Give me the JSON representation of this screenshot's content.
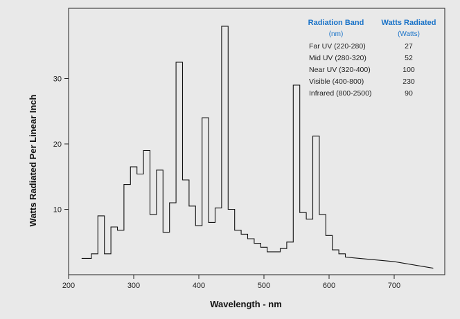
{
  "chart_data": {
    "type": "line",
    "title": "",
    "xlabel": "Wavelength - nm",
    "ylabel": "Watts Radiated Per Linear Inch",
    "xlim": [
      200,
      760
    ],
    "ylim": [
      0,
      40
    ],
    "x_ticks": [
      "200",
      "300",
      "400",
      "500",
      "600",
      "700"
    ],
    "y_ticks": [
      "10",
      "20",
      "30"
    ],
    "grid": false,
    "step_series": {
      "name": "",
      "start_x": 220,
      "steps": [
        {
          "x_end": 235,
          "y": 2.5
        },
        {
          "x_end": 245,
          "y": 3.2
        },
        {
          "x_end": 255,
          "y": 9.0
        },
        {
          "x_end": 265,
          "y": 3.2
        },
        {
          "x_end": 275,
          "y": 7.3
        },
        {
          "x_end": 285,
          "y": 6.8
        },
        {
          "x_end": 295,
          "y": 13.8
        },
        {
          "x_end": 305,
          "y": 16.5
        },
        {
          "x_end": 315,
          "y": 15.4
        },
        {
          "x_end": 325,
          "y": 19.0
        },
        {
          "x_end": 335,
          "y": 9.2
        },
        {
          "x_end": 345,
          "y": 16.0
        },
        {
          "x_end": 355,
          "y": 6.5
        },
        {
          "x_end": 365,
          "y": 11.0
        },
        {
          "x_end": 375,
          "y": 32.5
        },
        {
          "x_end": 385,
          "y": 14.5
        },
        {
          "x_end": 395,
          "y": 10.5
        },
        {
          "x_end": 405,
          "y": 7.5
        },
        {
          "x_end": 415,
          "y": 24.0
        },
        {
          "x_end": 425,
          "y": 8.0
        },
        {
          "x_end": 435,
          "y": 10.2
        },
        {
          "x_end": 445,
          "y": 38.0
        },
        {
          "x_end": 455,
          "y": 10.0
        },
        {
          "x_end": 465,
          "y": 6.8
        },
        {
          "x_end": 475,
          "y": 6.2
        },
        {
          "x_end": 485,
          "y": 5.5
        },
        {
          "x_end": 495,
          "y": 4.8
        },
        {
          "x_end": 505,
          "y": 4.2
        },
        {
          "x_end": 515,
          "y": 3.5
        },
        {
          "x_end": 525,
          "y": 3.5
        },
        {
          "x_end": 535,
          "y": 4.0
        },
        {
          "x_end": 545,
          "y": 5.0
        },
        {
          "x_end": 555,
          "y": 29.0
        },
        {
          "x_end": 565,
          "y": 9.5
        },
        {
          "x_end": 575,
          "y": 8.5
        },
        {
          "x_end": 585,
          "y": 21.2
        },
        {
          "x_end": 595,
          "y": 9.2
        },
        {
          "x_end": 605,
          "y": 6.0
        },
        {
          "x_end": 615,
          "y": 3.8
        },
        {
          "x_end": 625,
          "y": 3.2
        }
      ],
      "tail": [
        [
          625,
          2.7
        ],
        [
          700,
          2.0
        ],
        [
          760,
          1.0
        ]
      ]
    },
    "table": {
      "headers": [
        "Radiation Band",
        "Watts Radiated"
      ],
      "subheaders": [
        "(nm)",
        "(Watts)"
      ],
      "rows": [
        [
          "Far UV (220-280)",
          "27"
        ],
        [
          "Mid UV (280-320)",
          "52"
        ],
        [
          "Near UV (320-400)",
          "100"
        ],
        [
          "Visible (400-800)",
          "230"
        ],
        [
          "Infrared (800-2500)",
          "90"
        ]
      ]
    }
  },
  "colors": {
    "background": "#e9e9e9",
    "line": "#111111",
    "table_header": "#1a73c8"
  }
}
